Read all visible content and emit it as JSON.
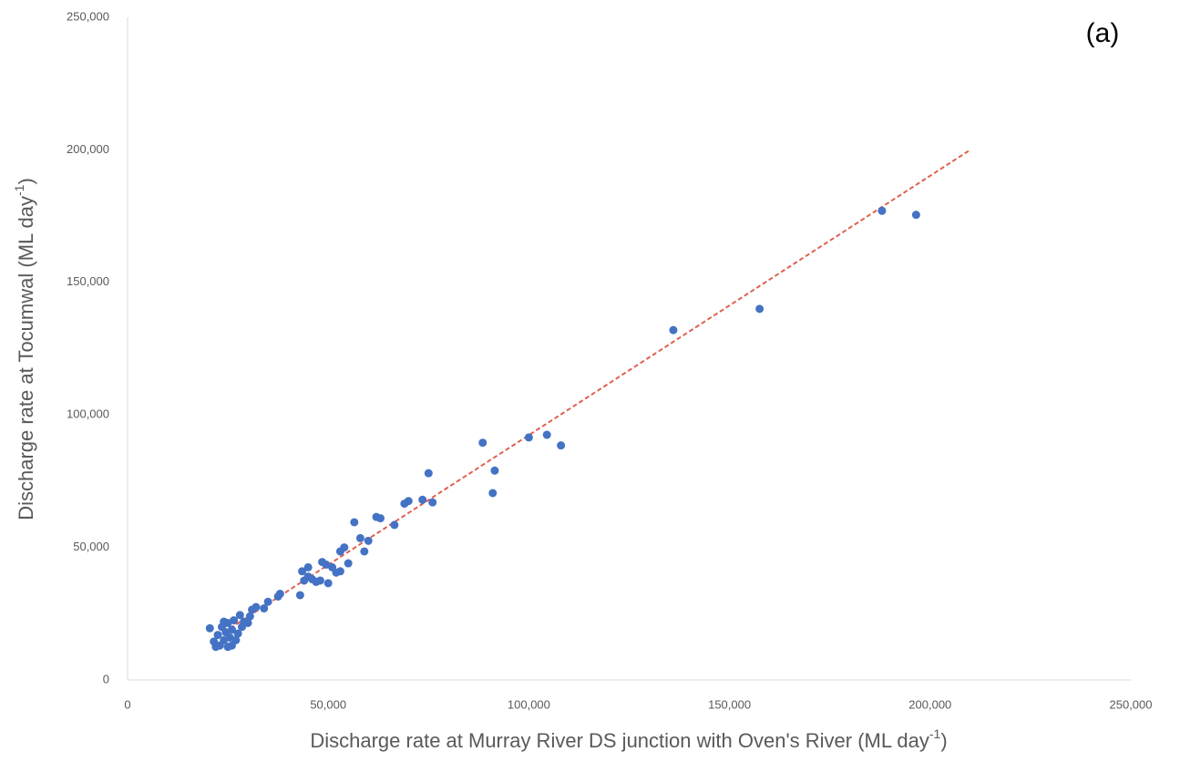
{
  "chart_data": {
    "type": "scatter",
    "annotation": "(a)",
    "xlabel": [
      "Discharge rate at Murray River DS junction with Oven's River (ML day",
      "-1",
      ")"
    ],
    "ylabel": [
      "Discharge rate at Tocumwal (ML day",
      "-1",
      ")"
    ],
    "x": [
      20500,
      21500,
      22000,
      22500,
      23000,
      23500,
      24000,
      24000,
      24500,
      25000,
      25000,
      25500,
      26000,
      26000,
      26500,
      27000,
      27500,
      28000,
      28500,
      29000,
      30000,
      30500,
      31000,
      32000,
      34000,
      35000,
      37500,
      38000,
      43000,
      43500,
      44000,
      45000,
      45000,
      46000,
      47000,
      48000,
      48500,
      49500,
      50000,
      51000,
      52000,
      53000,
      53000,
      54000,
      55000,
      56500,
      58000,
      59000,
      60000,
      62000,
      63000,
      66500,
      69000,
      70000,
      73500,
      75000,
      76000,
      88500,
      91000,
      91500,
      100000,
      104500,
      108000,
      136000,
      157500,
      188000,
      196500
    ],
    "values": [
      19500,
      14500,
      12500,
      17000,
      13000,
      20000,
      15000,
      22000,
      18000,
      21500,
      12500,
      16000,
      19000,
      13000,
      22500,
      15000,
      17500,
      24500,
      20000,
      22000,
      21500,
      24000,
      26500,
      27500,
      27000,
      29500,
      31500,
      32500,
      32000,
      41000,
      37500,
      39000,
      42500,
      38000,
      37000,
      37500,
      44500,
      43500,
      36500,
      42500,
      40500,
      41000,
      48500,
      50000,
      44000,
      59500,
      53500,
      48500,
      52500,
      61500,
      61000,
      58500,
      66500,
      67500,
      68000,
      78000,
      67000,
      89500,
      70500,
      79000,
      91500,
      92500,
      88500,
      132000,
      140000,
      177000,
      175500
    ],
    "color": "#4472c4",
    "trendline": {
      "x": [
        24000,
        210000
      ],
      "values": [
        18000,
        200000
      ],
      "color": "#e06050"
    },
    "xlim": [
      0,
      250000
    ],
    "ylim": [
      0,
      250000
    ],
    "xticks": [
      0,
      {
        "value": 50000,
        "label": "50,000"
      },
      {
        "value": 100000,
        "label": "100,000"
      },
      {
        "value": 150000,
        "label": "150,000"
      },
      {
        "value": 200000,
        "label": "200,000"
      },
      {
        "value": 250000,
        "label": "250,000"
      }
    ],
    "yticks": [
      0,
      {
        "value": 50000,
        "label": "50,000"
      },
      {
        "value": 100000,
        "label": "100,000"
      },
      {
        "value": 150000,
        "label": "150,000"
      },
      {
        "value": 200000,
        "label": "200,000"
      },
      {
        "value": 250000,
        "label": "250,000"
      }
    ],
    "grid": false
  }
}
